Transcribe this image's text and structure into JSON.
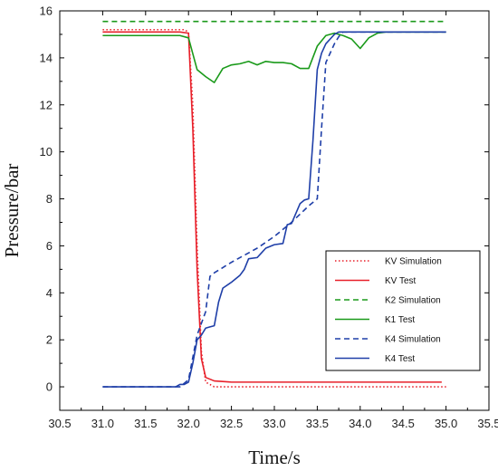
{
  "chart_data": {
    "type": "line",
    "title": "",
    "xlabel": "Time/s",
    "ylabel": "Pressure/bar",
    "xlim": [
      30.5,
      35.5
    ],
    "ylim": [
      -1,
      16
    ],
    "xticks": [
      "30.5",
      "31.0",
      "31.5",
      "32.0",
      "32.5",
      "33.0",
      "33.5",
      "34.0",
      "34.5",
      "35.0",
      "35.5"
    ],
    "yticks": [
      "0",
      "2",
      "4",
      "6",
      "8",
      "10",
      "12",
      "14",
      "16"
    ],
    "grid": false,
    "legend_position": "lower-right",
    "series": [
      {
        "name": "KV Simulation",
        "color": "#e8202a",
        "dash": "dotted",
        "x": [
          31.0,
          31.95,
          32.0,
          32.05,
          32.1,
          32.15,
          32.2,
          32.3,
          35.0
        ],
        "y": [
          15.2,
          15.2,
          15.1,
          12.0,
          6.0,
          1.5,
          0.2,
          0.0,
          0.0
        ]
      },
      {
        "name": "KV Test",
        "color": "#e8202a",
        "dash": "solid",
        "x": [
          31.0,
          31.9,
          32.0,
          32.05,
          32.1,
          32.15,
          32.2,
          32.3,
          32.5,
          33.0,
          33.5,
          34.0,
          34.5,
          34.95
        ],
        "y": [
          15.1,
          15.1,
          15.05,
          11.0,
          5.0,
          1.2,
          0.4,
          0.25,
          0.2,
          0.2,
          0.2,
          0.2,
          0.2,
          0.2
        ]
      },
      {
        "name": "K2 Simulation",
        "color": "#1a9a1a",
        "dash": "dashed",
        "x": [
          31.0,
          35.0
        ],
        "y": [
          15.55,
          15.55
        ]
      },
      {
        "name": "K1 Test",
        "color": "#1a9a1a",
        "dash": "solid",
        "x": [
          31.0,
          31.9,
          32.0,
          32.1,
          32.2,
          32.3,
          32.4,
          32.5,
          32.6,
          32.7,
          32.8,
          32.9,
          33.0,
          33.1,
          33.2,
          33.3,
          33.4,
          33.5,
          33.6,
          33.7,
          33.8,
          33.9,
          34.0,
          34.1,
          34.2,
          34.3,
          35.0
        ],
        "y": [
          14.95,
          14.95,
          14.85,
          13.5,
          13.2,
          12.95,
          13.55,
          13.7,
          13.75,
          13.85,
          13.7,
          13.85,
          13.8,
          13.8,
          13.75,
          13.55,
          13.55,
          14.5,
          14.95,
          15.05,
          14.95,
          14.8,
          14.4,
          14.85,
          15.05,
          15.1,
          15.1
        ]
      },
      {
        "name": "K4 Simulation",
        "color": "#1f3fa8",
        "dash": "dashed",
        "x": [
          31.0,
          31.9,
          32.0,
          32.1,
          32.2,
          32.25,
          32.3,
          32.5,
          32.8,
          33.0,
          33.2,
          33.4,
          33.5,
          33.55,
          33.6,
          33.7,
          33.75,
          33.8,
          35.0
        ],
        "y": [
          0.0,
          0.0,
          0.3,
          2.2,
          3.2,
          4.7,
          4.85,
          5.3,
          5.9,
          6.4,
          7.0,
          7.7,
          8.0,
          11.0,
          13.8,
          14.6,
          14.9,
          15.1,
          15.1
        ]
      },
      {
        "name": "K4 Test",
        "color": "#1f3fa8",
        "dash": "solid",
        "x": [
          31.0,
          31.85,
          31.9,
          31.95,
          32.0,
          32.05,
          32.1,
          32.15,
          32.2,
          32.25,
          32.3,
          32.35,
          32.4,
          32.5,
          32.6,
          32.65,
          32.7,
          32.8,
          32.85,
          32.9,
          33.0,
          33.1,
          33.15,
          33.2,
          33.3,
          33.35,
          33.4,
          33.45,
          33.5,
          33.55,
          33.6,
          33.65,
          33.7,
          33.75,
          33.8,
          34.0,
          35.0
        ],
        "y": [
          0.0,
          0.0,
          0.1,
          0.1,
          0.2,
          1.0,
          2.0,
          2.2,
          2.5,
          2.55,
          2.6,
          3.6,
          4.2,
          4.45,
          4.75,
          5.0,
          5.45,
          5.5,
          5.7,
          5.9,
          6.05,
          6.1,
          6.9,
          6.95,
          7.8,
          7.95,
          8.0,
          10.5,
          13.5,
          14.2,
          14.6,
          14.8,
          15.0,
          15.1,
          15.1,
          15.1,
          15.1
        ]
      }
    ]
  }
}
